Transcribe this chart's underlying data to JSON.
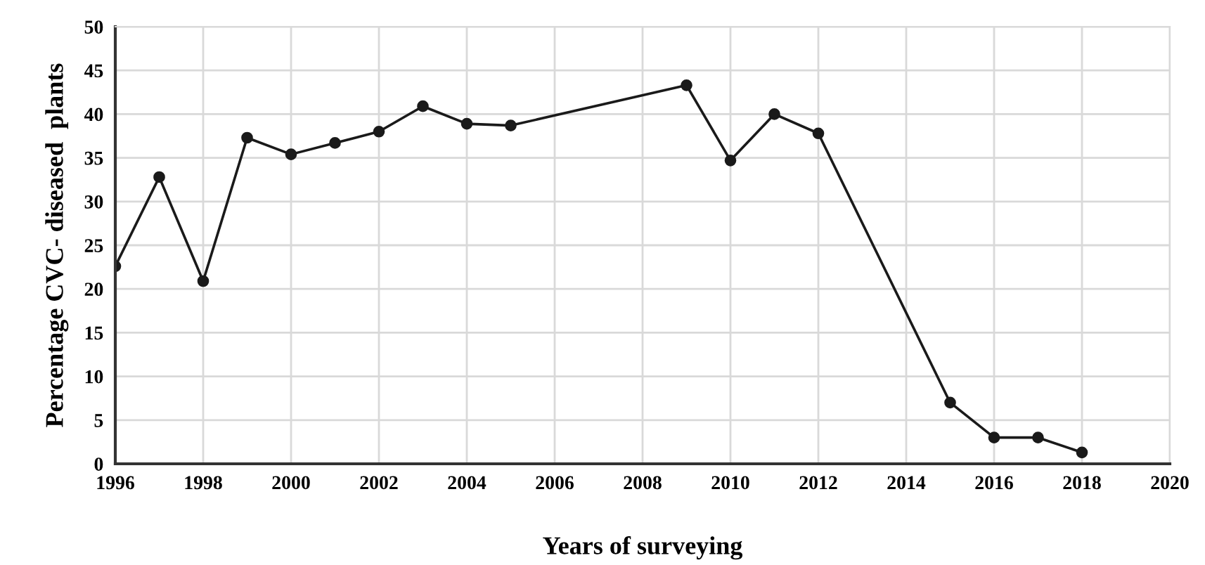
{
  "chart_data": {
    "type": "line",
    "xlabel": "Years of surveying",
    "ylabel": "Percentage CVC- diseased  plants",
    "x": [
      1996,
      1997,
      1998,
      1999,
      2000,
      2001,
      2002,
      2003,
      2004,
      2005,
      2009,
      2010,
      2011,
      2012,
      2015,
      2016,
      2017,
      2018
    ],
    "series": [
      {
        "color": "#1a1a1a",
        "values": [
          22.6,
          32.8,
          20.9,
          37.3,
          35.4,
          36.7,
          38.0,
          40.9,
          38.9,
          38.7,
          43.3,
          34.7,
          40.0,
          37.8,
          7.0,
          3.0,
          3.0,
          1.3
        ]
      }
    ],
    "xlim": [
      1996,
      2020
    ],
    "xticks": [
      1996,
      1998,
      2000,
      2002,
      2004,
      2006,
      2008,
      2010,
      2012,
      2014,
      2016,
      2018,
      2020
    ],
    "ylim": [
      0,
      50
    ],
    "yticks": [
      0,
      5,
      10,
      15,
      20,
      25,
      30,
      35,
      40,
      45,
      50
    ],
    "grid": true,
    "marker": "circle",
    "line_style": "solid",
    "legend": false
  }
}
